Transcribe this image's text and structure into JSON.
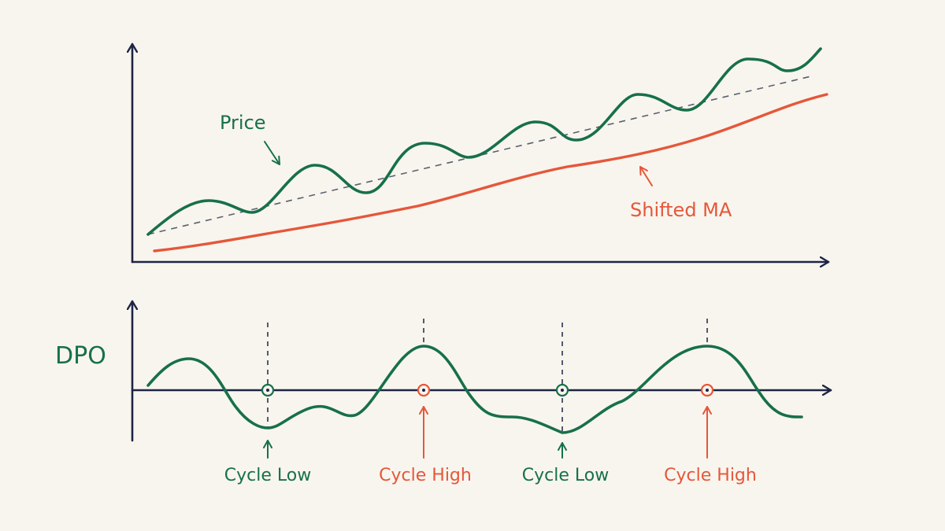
{
  "colors": {
    "background": "#f8f5ee",
    "axis": "#1d2545",
    "price": "#17704a",
    "shifted_ma": "#e5573a",
    "trend": "#5a6070"
  },
  "labels": {
    "price": "Price",
    "shifted_ma": "Shifted MA",
    "dpo": "DPO",
    "cycle_low": "Cycle Low",
    "cycle_high": "Cycle High"
  },
  "cycle_markers": [
    {
      "type": "low",
      "label": "Cycle Low",
      "color": "#17704a"
    },
    {
      "type": "high",
      "label": "Cycle High",
      "color": "#e5573a"
    },
    {
      "type": "low",
      "label": "Cycle Low",
      "color": "#17704a"
    },
    {
      "type": "high",
      "label": "Cycle High",
      "color": "#e5573a"
    }
  ]
}
